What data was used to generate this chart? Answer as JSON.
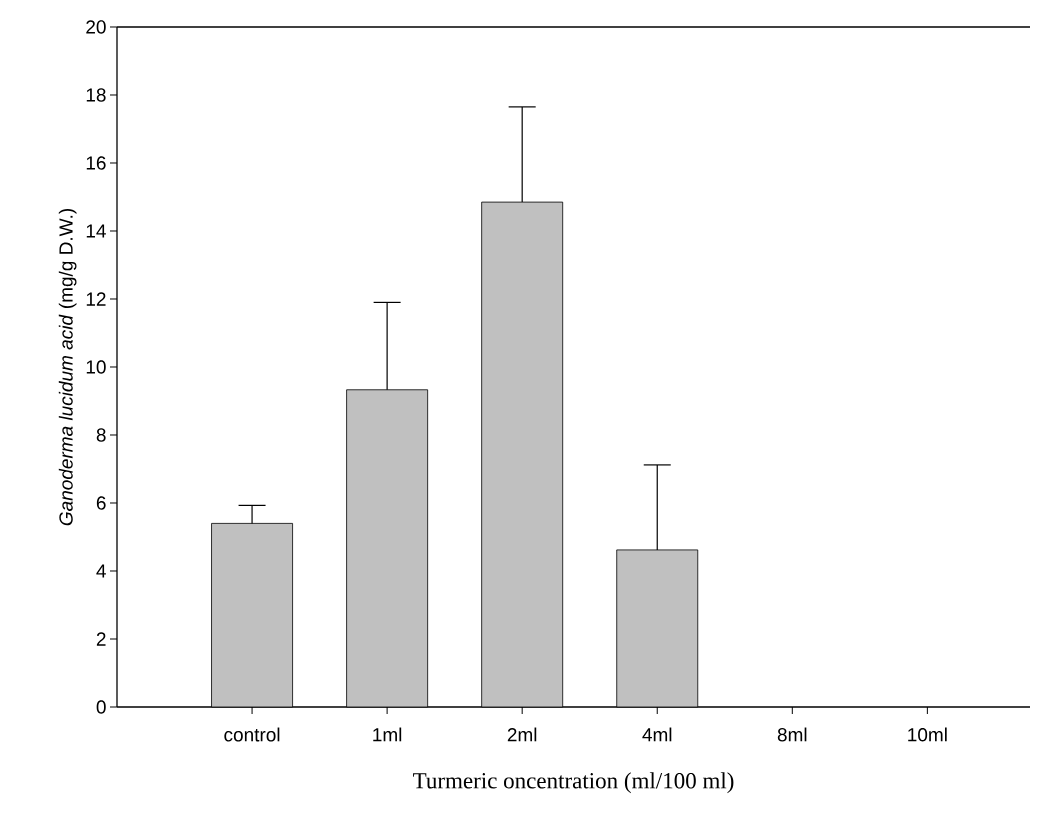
{
  "chart_data": {
    "type": "bar",
    "categories": [
      "control",
      "1ml",
      "2ml",
      "4ml",
      "8ml",
      "10ml"
    ],
    "values": [
      5.4,
      9.33,
      14.85,
      4.62,
      0,
      0
    ],
    "errors": [
      [
        5.4,
        5.93
      ],
      [
        9.33,
        11.9
      ],
      [
        14.85,
        17.65
      ],
      [
        4.62,
        7.12
      ],
      null,
      null
    ],
    "color": "#c0c0c0",
    "xlabel": "Turmeric oncentration (ml/100 ml)",
    "ylabel": "*Ganoderma lucidum acid* (mg/g D.W.)",
    "ylim": [
      0,
      20
    ],
    "yticks": [
      0,
      2,
      4,
      6,
      8,
      10,
      12,
      14,
      16,
      18,
      20
    ],
    "grid": false
  }
}
